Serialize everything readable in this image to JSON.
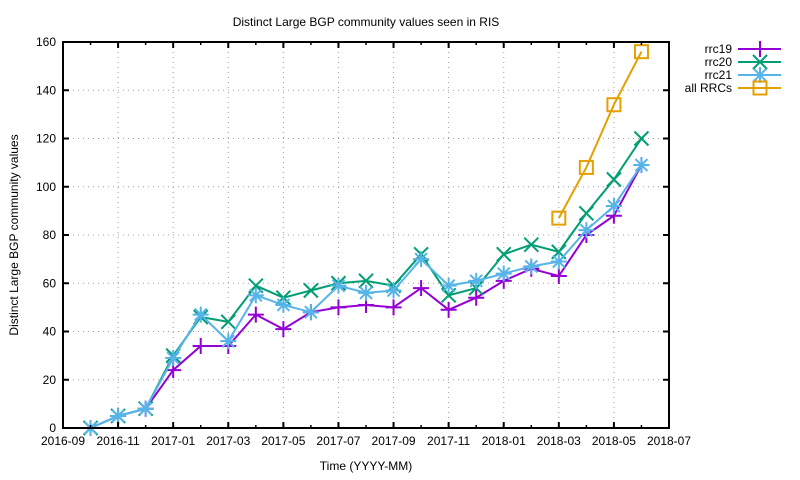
{
  "chart_data": {
    "type": "line",
    "title": "Distinct Large BGP community values seen in RIS",
    "xlabel": "Time (YYYY-MM)",
    "ylabel": "Distinct Large BGP community values",
    "xlim": [
      "2016-09",
      "2018-07"
    ],
    "ylim": [
      0,
      160
    ],
    "grid": true,
    "legend_position": "outside-top-right",
    "x_ticks": [
      "2016-09",
      "2016-11",
      "2017-01",
      "2017-03",
      "2017-05",
      "2017-07",
      "2017-09",
      "2017-11",
      "2018-01",
      "2018-03",
      "2018-05",
      "2018-07"
    ],
    "y_ticks": [
      0,
      20,
      40,
      60,
      80,
      100,
      120,
      140,
      160
    ],
    "series": [
      {
        "name": "rrc19",
        "color": "#9400d3",
        "marker": "plus",
        "x": [
          "2016-10",
          "2016-11",
          "2016-12",
          "2017-01",
          "2017-02",
          "2017-03",
          "2017-04",
          "2017-05",
          "2017-06",
          "2017-07",
          "2017-08",
          "2017-09",
          "2017-10",
          "2017-11",
          "2017-12",
          "2018-01",
          "2018-02",
          "2018-03",
          "2018-04",
          "2018-05",
          "2018-06"
        ],
        "values": [
          0,
          5,
          8,
          24,
          34,
          34,
          47,
          41,
          48,
          50,
          51,
          50,
          58,
          49,
          54,
          61,
          66,
          63,
          80,
          88,
          109
        ]
      },
      {
        "name": "rrc20",
        "color": "#009e73",
        "marker": "cross",
        "x": [
          "2016-10",
          "2016-11",
          "2016-12",
          "2017-01",
          "2017-02",
          "2017-03",
          "2017-04",
          "2017-05",
          "2017-06",
          "2017-07",
          "2017-08",
          "2017-09",
          "2017-10",
          "2017-11",
          "2017-12",
          "2018-01",
          "2018-02",
          "2018-03",
          "2018-04",
          "2018-05",
          "2018-06"
        ],
        "values": [
          0,
          5,
          8,
          30,
          46,
          44,
          59,
          54,
          57,
          60,
          61,
          59,
          72,
          55,
          58,
          72,
          76,
          73,
          89,
          103,
          120
        ]
      },
      {
        "name": "rrc21",
        "color": "#56b4e9",
        "marker": "star",
        "x": [
          "2016-10",
          "2016-11",
          "2016-12",
          "2017-01",
          "2017-02",
          "2017-03",
          "2017-04",
          "2017-05",
          "2017-06",
          "2017-07",
          "2017-08",
          "2017-09",
          "2017-10",
          "2017-11",
          "2017-12",
          "2018-01",
          "2018-02",
          "2018-03",
          "2018-04",
          "2018-05",
          "2018-06"
        ],
        "values": [
          0,
          5,
          8,
          29,
          47,
          36,
          55,
          51,
          48,
          59,
          56,
          57,
          70,
          59,
          61,
          64,
          67,
          69,
          82,
          92,
          109
        ]
      },
      {
        "name": "all RRCs",
        "color": "#e69f00",
        "marker": "square",
        "x": [
          "2018-03",
          "2018-04",
          "2018-05",
          "2018-06"
        ],
        "values": [
          87,
          108,
          134,
          156
        ]
      }
    ]
  }
}
